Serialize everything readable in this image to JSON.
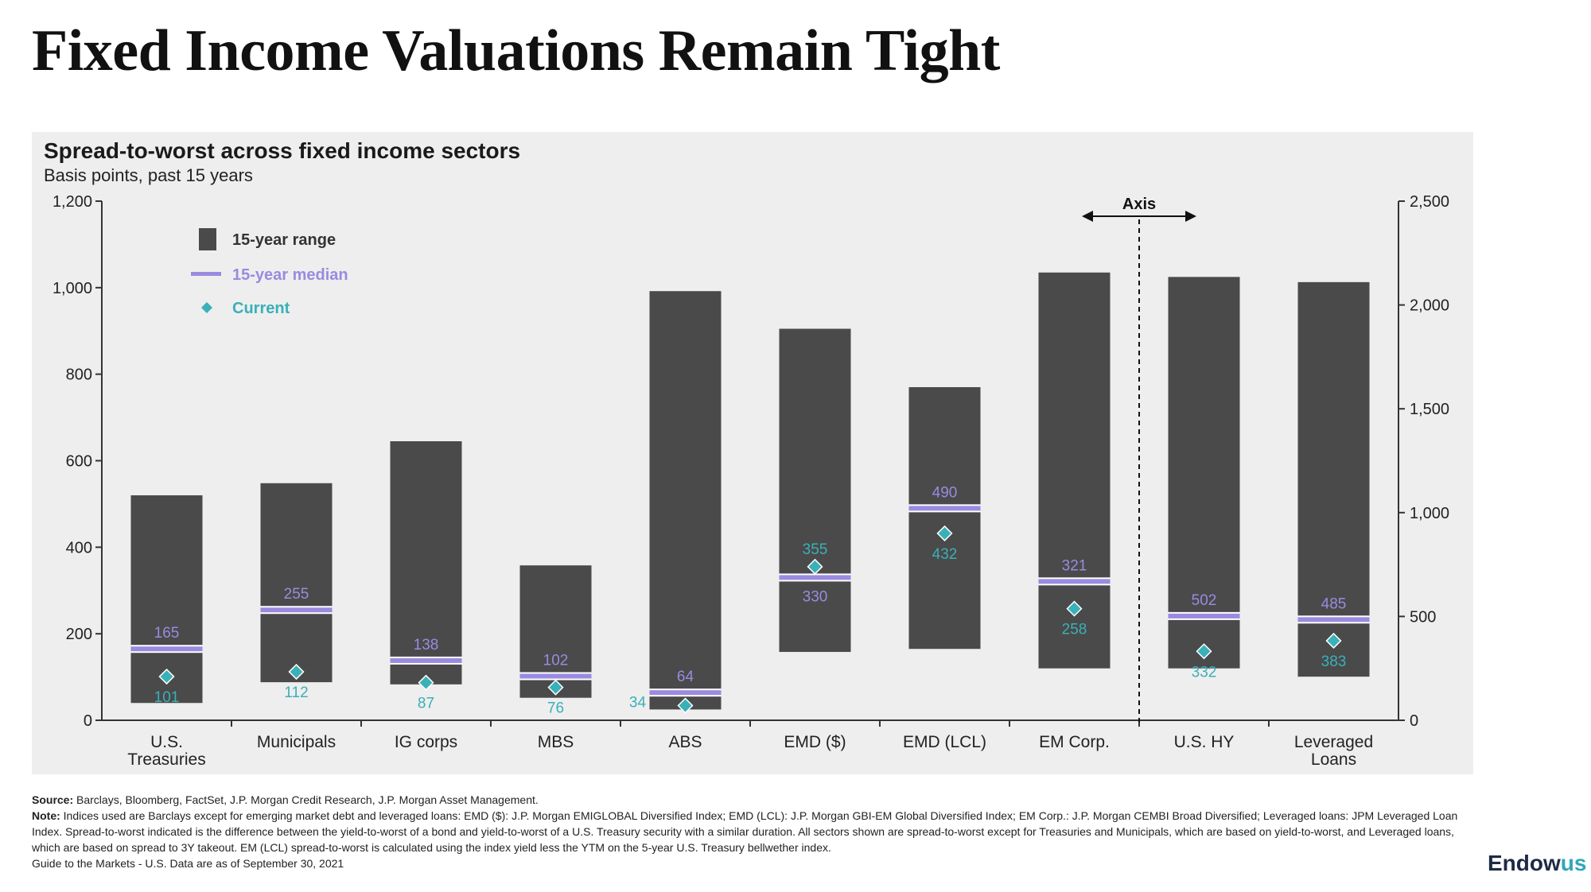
{
  "slide": {
    "title": "Fixed Income Valuations Remain Tight"
  },
  "footnotes": {
    "source_label": "Source:",
    "source_text": "Barclays, Bloomberg, FactSet, J.P. Morgan Credit Research, J.P. Morgan Asset Management.",
    "note_label": "Note:",
    "note_text": "Indices used are Barclays except for emerging market debt and leveraged loans: EMD ($): J.P. Morgan EMIGLOBAL Diversified Index; EMD (LCL): J.P. Morgan GBI-EM Global Diversified Index; EM Corp.: J.P. Morgan CEMBI Broad Diversified; Leveraged loans: JPM Leveraged Loan Index. Spread-to-worst indicated is the difference between the yield-to-worst of a bond and yield-to-worst of a U.S. Treasury security with a similar duration. All sectors shown are spread-to-worst except for Treasuries and Municipals, which are based on yield-to-worst, and Leveraged loans, which are based on spread to 3Y takeout. EM (LCL) spread-to-worst is calculated using the index yield less the YTM on the 5-year U.S. Treasury bellwether index.",
    "guide_text": "Guide to the Markets - U.S. Data are as of September 30, 2021"
  },
  "brand": {
    "name_main": "Endow",
    "name_accent": "us"
  },
  "chart_data": {
    "type": "bar",
    "title": "Spread-to-worst across fixed income sectors",
    "subtitle": "Basis points, past 15 years",
    "legend": {
      "placement": "top-left",
      "items": [
        {
          "label": "15-year range",
          "color": "#4a4a4a"
        },
        {
          "label": "15-year median",
          "color": "#9b8ae0"
        },
        {
          "label": "Current",
          "color": "#3ab0b8"
        }
      ]
    },
    "axis_divider_label": "Axis",
    "y_left": {
      "min": 0,
      "max": 1200,
      "ticks": [
        0,
        200,
        400,
        600,
        800,
        1000,
        1200
      ],
      "tick_labels": [
        "0",
        "200",
        "400",
        "600",
        "800",
        "1,000",
        "1,200"
      ]
    },
    "y_right": {
      "min": 0,
      "max": 2500,
      "ticks": [
        0,
        500,
        1000,
        1500,
        2000,
        2500
      ],
      "tick_labels": [
        "0",
        "500",
        "1,000",
        "1,500",
        "2,000",
        "2,500"
      ]
    },
    "grid": false,
    "categories": [
      {
        "label": [
          "U.S.",
          "Treasuries"
        ],
        "axis": "left",
        "low": 40,
        "high": 520,
        "median": 165,
        "current": 101,
        "median_label": "165",
        "current_label": "101"
      },
      {
        "label": [
          "Municipals"
        ],
        "axis": "left",
        "low": 88,
        "high": 548,
        "median": 255,
        "current": 112,
        "median_label": "255",
        "current_label": "112"
      },
      {
        "label": [
          "IG corps"
        ],
        "axis": "left",
        "low": 83,
        "high": 645,
        "median": 138,
        "current": 87,
        "median_label": "138",
        "current_label": "87"
      },
      {
        "label": [
          "MBS"
        ],
        "axis": "left",
        "low": 52,
        "high": 358,
        "median": 102,
        "current": 76,
        "median_label": "102",
        "current_label": "76"
      },
      {
        "label": [
          "ABS"
        ],
        "axis": "left",
        "low": 25,
        "high": 992,
        "median": 64,
        "current": 34,
        "median_label": "64",
        "current_label": "34"
      },
      {
        "label": [
          "EMD ($)"
        ],
        "axis": "left",
        "low": 158,
        "high": 905,
        "median": 330,
        "current": 355,
        "median_label": "330",
        "current_label": "355"
      },
      {
        "label": [
          "EMD (LCL)"
        ],
        "axis": "left",
        "low": 165,
        "high": 770,
        "median": 490,
        "current": 432,
        "median_label": "490",
        "current_label": "432"
      },
      {
        "label": [
          "EM Corp."
        ],
        "axis": "left",
        "low": 120,
        "high": 1035,
        "median": 321,
        "current": 258,
        "median_label": "321",
        "current_label": "258"
      },
      {
        "label": [
          "U.S. HY"
        ],
        "axis": "right",
        "low": 250,
        "high": 2135,
        "median": 502,
        "current": 332,
        "median_label": "502",
        "current_label": "332"
      },
      {
        "label": [
          "Leveraged",
          "Loans"
        ],
        "axis": "right",
        "low": 210,
        "high": 2110,
        "median": 485,
        "current": 383,
        "median_label": "485",
        "current_label": "383"
      }
    ]
  }
}
